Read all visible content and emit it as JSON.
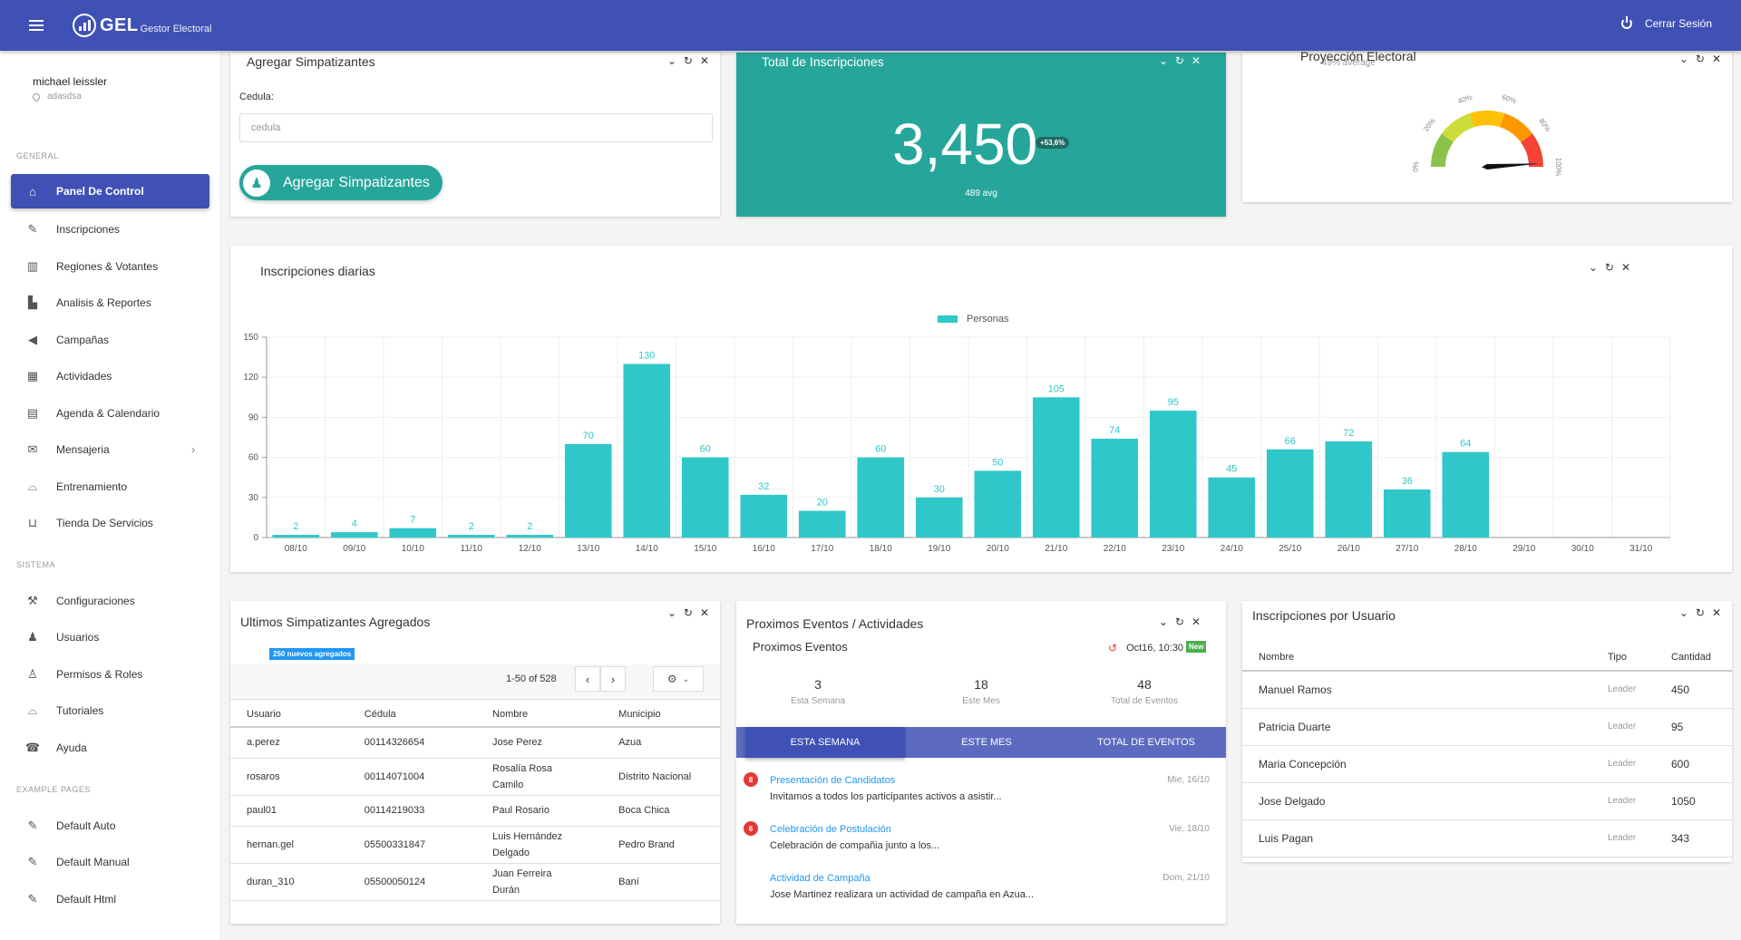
{
  "topbar": {
    "logo_text": "GEL",
    "logo_subtitle": "Gestor Electoral",
    "logout_label": "Cerrar Sesión"
  },
  "user": {
    "name": "michael leissler",
    "location": "adasdsa"
  },
  "sidebar": {
    "sections": [
      "GENERAL",
      "SISTEMA",
      "EXAMPLE PAGES"
    ],
    "items": [
      {
        "label": "Panel De Control",
        "icon": "home-icon",
        "active": true
      },
      {
        "label": "Inscripciones",
        "icon": "pencil-icon"
      },
      {
        "label": "Regiones & Votantes",
        "icon": "map-icon"
      },
      {
        "label": "Analisis & Reportes",
        "icon": "bar-chart-icon"
      },
      {
        "label": "Campañas",
        "icon": "megaphone-icon"
      },
      {
        "label": "Actividades",
        "icon": "calendar-grid-icon"
      },
      {
        "label": "Agenda & Calendario",
        "icon": "calendar-icon"
      },
      {
        "label": "Mensajeria",
        "icon": "mail-icon"
      },
      {
        "label": "Entrenamiento",
        "icon": "graduation-cap-icon"
      },
      {
        "label": "Tienda De Servicios",
        "icon": "cart-icon"
      },
      {
        "label": "Configuraciones",
        "icon": "wrench-icon"
      },
      {
        "label": "Usuarios",
        "icon": "user-icon"
      },
      {
        "label": "Permisos & Roles",
        "icon": "user-key-icon"
      },
      {
        "label": "Tutoriales",
        "icon": "graduation-cap-icon"
      },
      {
        "label": "Ayuda",
        "icon": "help-icon"
      },
      {
        "label": "Default Auto",
        "icon": "pencil-icon"
      },
      {
        "label": "Default Manual",
        "icon": "pencil-icon"
      },
      {
        "label": "Default Html",
        "icon": "pencil-icon"
      }
    ]
  },
  "add_card": {
    "title": "Agregar Simpatizantes",
    "cedula_label": "Cedula:",
    "cedula_placeholder": "cedula",
    "button_label": "Agregar Simpatizantes"
  },
  "total_card": {
    "title": "Total de Inscripciones",
    "value": "3,450",
    "badge": "+53,6%",
    "avg": "489 avg"
  },
  "gauge_card": {
    "title": "Proyección Electoral",
    "subtitle": "49% average",
    "tick_labels": [
      "0%",
      "20%",
      "40%",
      "60%",
      "80%",
      "100%"
    ],
    "value_percent": 98,
    "colors": [
      "#8bc34a",
      "#cddc39",
      "#ffc107",
      "#ff9800",
      "#f44336"
    ]
  },
  "daily_card": {
    "title": "Inscripciones diarias"
  },
  "chart_data": {
    "type": "bar",
    "title": "Inscripciones diarias",
    "series": [
      {
        "name": "Personas",
        "color": "#2fc7c9",
        "values": [
          2,
          4,
          7,
          2,
          2,
          70,
          130,
          60,
          32,
          20,
          60,
          30,
          50,
          105,
          74,
          95,
          45,
          66,
          72,
          36,
          64,
          null,
          null,
          null
        ]
      }
    ],
    "categories": [
      "08/10",
      "09/10",
      "10/10",
      "11/10",
      "12/10",
      "13/10",
      "14/10",
      "15/10",
      "16/10",
      "17/10",
      "18/10",
      "19/10",
      "20/10",
      "21/10",
      "22/10",
      "23/10",
      "24/10",
      "25/10",
      "26/10",
      "27/10",
      "28/10",
      "29/10",
      "30/10",
      "31/10"
    ],
    "yticks": [
      0,
      30,
      60,
      90,
      120,
      150
    ],
    "ylim": [
      0,
      150
    ],
    "legend": "top-center",
    "grid": true
  },
  "supporters_card": {
    "title": "Ultimos Simpatizantes Agregados",
    "badge": "250 nuevos agregados",
    "pager_text": "1-50 of 528",
    "columns": [
      "Usuario",
      "Cédula",
      "Nombre",
      "Municipio"
    ],
    "rows": [
      [
        "a.perez",
        "00114326654",
        "Jose Perez",
        "Azua"
      ],
      [
        "rosaros",
        "00114071004",
        "Rosalía Rosa Camilo",
        "Distrito Nacional"
      ],
      [
        "paul01",
        "00114219033",
        "Paul Rosario",
        "Boca Chica"
      ],
      [
        "hernan.gel",
        "05500331847",
        "Luis Hernández Delgado",
        "Pedro Brand"
      ],
      [
        "duran_310",
        "05500050124",
        "Juan Ferreira Durán",
        "Baní"
      ]
    ]
  },
  "events_card": {
    "title": "Proximos Eventos / Actividades",
    "subtitle": "Proximos Eventos",
    "next_date": "Oct16, 10:30",
    "new_badge": "New",
    "stats": [
      {
        "value": "3",
        "label": "Esta Semana"
      },
      {
        "value": "18",
        "label": "Este Mes"
      },
      {
        "value": "48",
        "label": "Total de Eventos"
      }
    ],
    "tabs": [
      "ESTA SEMANA",
      "ESTE MES",
      "TOTAL DE EVENTOS"
    ],
    "events": [
      {
        "num": "8",
        "title": "Presentación de Candidatos",
        "desc": "Invitamos a todos los participantes activos a asistir...",
        "when": "Mie, 16/10"
      },
      {
        "num": "6",
        "title": "Celebración de Postulación",
        "desc": "Celebración de compañia junto a los...",
        "when": "Vie, 18/10"
      },
      {
        "num": "",
        "title": "Actividad de Campaña",
        "desc": "Jose Martinez realizara un actividad de campaña en Azua...",
        "when": "Dom, 21/10"
      }
    ]
  },
  "users_card": {
    "title": "Inscripciones por Usuario",
    "columns": [
      "Nombre",
      "Tipo",
      "Cantidad"
    ],
    "rows": [
      [
        "Manuel Ramos",
        "Leader",
        "450"
      ],
      [
        "Patricia Duarte",
        "Leader",
        "95"
      ],
      [
        "Maria Concepción",
        "Leader",
        "600"
      ],
      [
        "Jose Delgado",
        "Leader",
        "1050"
      ],
      [
        "Luis Pagan",
        "Leader",
        "343"
      ]
    ]
  }
}
